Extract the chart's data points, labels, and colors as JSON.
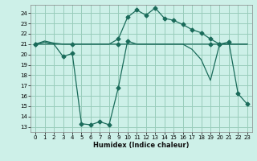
{
  "title": "",
  "xlabel": "Humidex (Indice chaleur)",
  "bg_color": "#cdf0e8",
  "grid_color": "#99ccbb",
  "line_color": "#1a6b5a",
  "markersize": 2.5,
  "linewidth": 0.9,
  "xlim": [
    -0.5,
    23.5
  ],
  "ylim": [
    12.5,
    24.8
  ],
  "yticks": [
    13,
    14,
    15,
    16,
    17,
    18,
    19,
    20,
    21,
    22,
    23,
    24
  ],
  "xticks": [
    0,
    1,
    2,
    3,
    4,
    5,
    6,
    7,
    8,
    9,
    10,
    11,
    12,
    13,
    14,
    15,
    16,
    17,
    18,
    19,
    20,
    21,
    22,
    23
  ],
  "curve1_x": [
    0,
    1,
    2,
    3,
    4,
    5,
    6,
    7,
    8,
    9,
    10,
    11,
    12,
    13,
    14,
    15,
    16,
    17,
    18,
    19,
    20,
    21,
    22,
    23
  ],
  "curve1_y": [
    21.0,
    21.3,
    21.1,
    21.0,
    21.0,
    21.0,
    21.0,
    21.0,
    21.0,
    21.0,
    21.0,
    21.0,
    21.0,
    21.0,
    21.0,
    21.0,
    21.0,
    21.0,
    21.0,
    21.0,
    21.0,
    21.0,
    21.0,
    21.0
  ],
  "curve2_x": [
    0,
    1,
    2,
    3,
    4,
    5,
    6,
    7,
    8,
    9,
    10,
    11,
    12,
    13,
    14,
    15,
    16,
    17,
    18,
    19,
    20,
    21,
    22,
    23
  ],
  "curve2_y": [
    21.0,
    21.0,
    21.0,
    21.0,
    21.0,
    21.0,
    21.0,
    21.0,
    21.0,
    21.5,
    23.6,
    24.3,
    23.8,
    24.5,
    23.5,
    23.3,
    22.9,
    22.4,
    22.1,
    21.5,
    21.0,
    21.0,
    21.0,
    21.0
  ],
  "curve3_x": [
    0,
    1,
    2,
    3,
    4,
    5,
    6,
    7,
    8,
    9,
    10,
    11,
    12,
    13,
    14,
    15,
    16,
    17,
    18,
    19,
    20,
    21,
    22,
    23
  ],
  "curve3_y": [
    21.0,
    21.2,
    21.0,
    19.8,
    20.1,
    13.3,
    13.2,
    13.5,
    13.2,
    16.8,
    21.3,
    21.0,
    21.0,
    21.0,
    21.0,
    21.0,
    21.0,
    20.5,
    19.5,
    17.5,
    21.0,
    21.2,
    16.2,
    15.2
  ],
  "curve1_markers": [
    0,
    4,
    9,
    19
  ],
  "curve2_markers": [
    0,
    9,
    10,
    11,
    12,
    13,
    14,
    15,
    16,
    17,
    18,
    19,
    20
  ],
  "curve3_markers": [
    3,
    4,
    5,
    6,
    7,
    8,
    9,
    10,
    20,
    21,
    22,
    23
  ]
}
